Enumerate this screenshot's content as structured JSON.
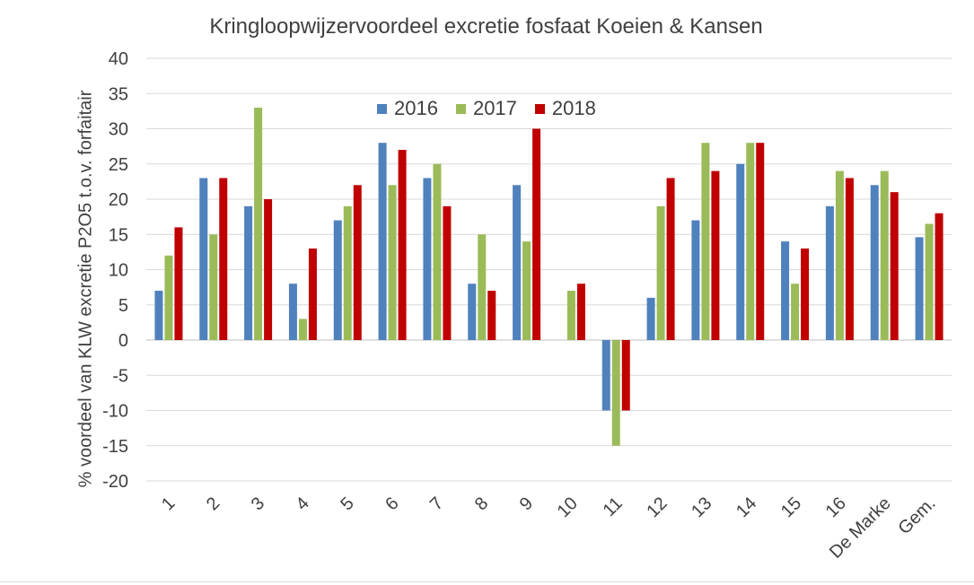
{
  "chart_data": {
    "type": "bar",
    "title": "Kringloopwijzervoordeel  excretie fosfaat Koeien & Kansen",
    "xlabel": "",
    "ylabel": "% voordeel van KLW excretie P2O5 t.o.v. forfaitair",
    "ylim": [
      -20,
      40
    ],
    "yticks": [
      40,
      35,
      30,
      25,
      20,
      15,
      10,
      5,
      0,
      -5,
      -10,
      -15,
      -20
    ],
    "grid": true,
    "legend_position": "top-center",
    "categories": [
      "1",
      "2",
      "3",
      "4",
      "5",
      "6",
      "7",
      "8",
      "9",
      "10",
      "11",
      "12",
      "13",
      "14",
      "15",
      "16",
      "De Marke",
      "Gem."
    ],
    "series": [
      {
        "name": "2016",
        "color": "#4f81bd",
        "values": [
          7,
          23,
          19,
          8,
          17,
          28,
          23,
          8,
          22,
          0,
          -10,
          6,
          17,
          25,
          14,
          19,
          22,
          14.6
        ]
      },
      {
        "name": "2017",
        "color": "#9bbb59",
        "values": [
          12,
          15,
          33,
          3,
          19,
          22,
          25,
          15,
          14,
          7,
          -15,
          19,
          28,
          28,
          8,
          24,
          24,
          16.5
        ]
      },
      {
        "name": "2018",
        "color": "#c00000",
        "values": [
          16,
          23,
          20,
          13,
          22,
          27,
          19,
          7,
          30,
          8,
          -10,
          23,
          24,
          28,
          13,
          23,
          21,
          18
        ]
      }
    ]
  }
}
